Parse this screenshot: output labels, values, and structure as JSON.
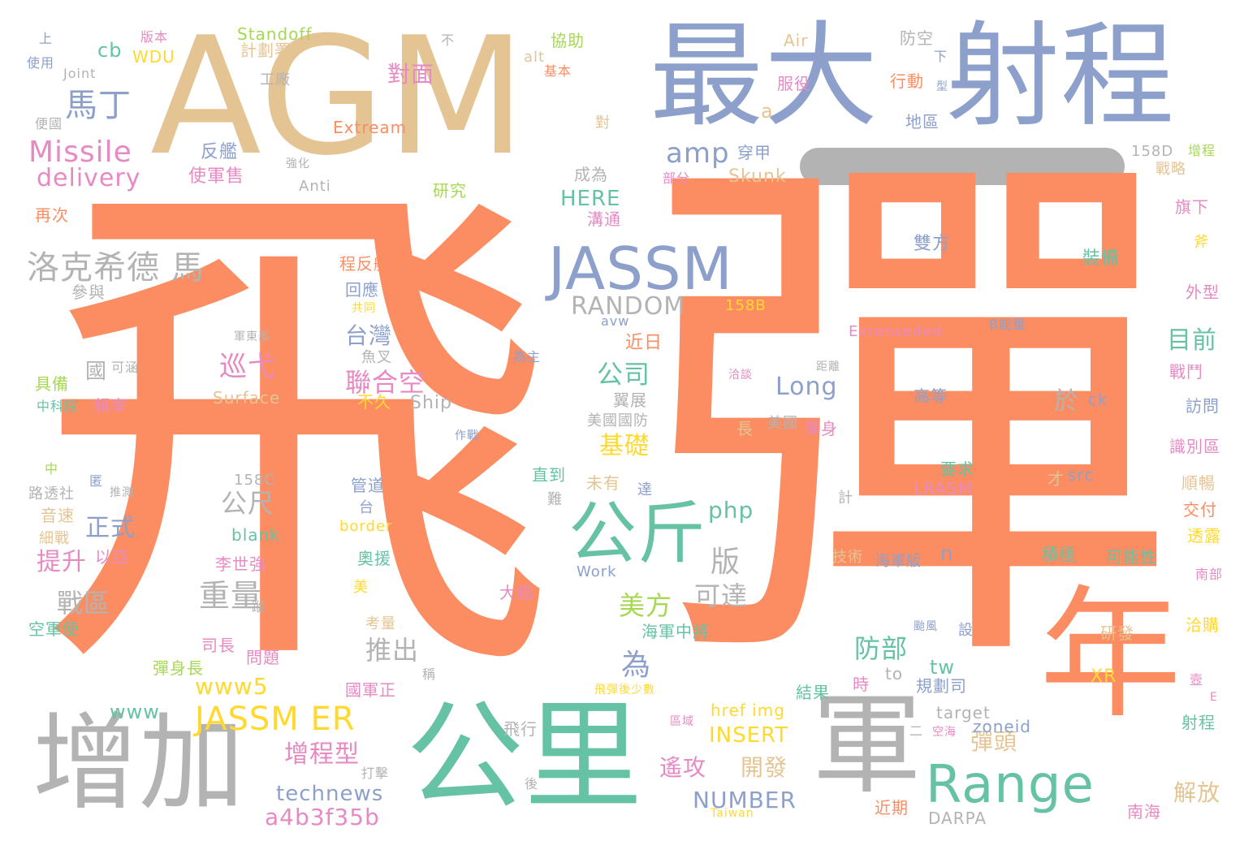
{
  "palette": {
    "orange": "#fc8d62",
    "blue": "#8da0cb",
    "green": "#66c2a5",
    "pink": "#e78ac3",
    "gray": "#b3b3b3",
    "tan": "#e5c494",
    "yellow": "#ffd92f",
    "lime": "#a6d854"
  },
  "words": [
    {
      "text": "飛",
      "color": "orange"
    },
    {
      "text": "彈",
      "color": "orange"
    },
    {
      "text": "AGM",
      "color": "tan"
    },
    {
      "text": "最大",
      "color": "blue"
    },
    {
      "text": "射程",
      "color": "blue"
    },
    {
      "text": "增加",
      "color": "gray"
    },
    {
      "text": "公里",
      "color": "green"
    },
    {
      "text": "軍",
      "color": "gray"
    },
    {
      "text": "年",
      "color": "orange"
    },
    {
      "text": "Range",
      "color": "green"
    },
    {
      "text": "JASSM",
      "color": "blue"
    },
    {
      "text": "公斤",
      "color": "green"
    },
    {
      "text": "JASSM ER",
      "color": "yellow"
    },
    {
      "text": "洛克希德 馬",
      "color": "gray"
    },
    {
      "text": "Missile",
      "color": "pink"
    },
    {
      "text": "delivery",
      "color": "pink"
    },
    {
      "text": "馬丁",
      "color": "blue"
    },
    {
      "text": "amp",
      "color": "blue"
    },
    {
      "text": "RANDOM",
      "color": "gray"
    },
    {
      "text": "重量",
      "color": "gray"
    },
    {
      "text": "版",
      "color": "gray"
    },
    {
      "text": "可達",
      "color": "gray"
    },
    {
      "text": "美方",
      "color": "lime"
    },
    {
      "text": "台灣",
      "color": "blue"
    },
    {
      "text": "聯合空",
      "color": "pink"
    },
    {
      "text": "巡弋",
      "color": "pink"
    },
    {
      "text": "公司",
      "color": "green"
    },
    {
      "text": "基礎",
      "color": "yellow"
    },
    {
      "text": "Long",
      "color": "blue"
    },
    {
      "text": "php",
      "color": "green"
    },
    {
      "text": "正式",
      "color": "blue"
    },
    {
      "text": "提升",
      "color": "pink"
    },
    {
      "text": "戰區",
      "color": "gray"
    },
    {
      "text": "公尺",
      "color": "gray"
    },
    {
      "text": "推出",
      "color": "gray"
    },
    {
      "text": "防部",
      "color": "green"
    },
    {
      "text": "為",
      "color": "blue"
    },
    {
      "text": "www5",
      "color": "yellow"
    },
    {
      "text": "www",
      "color": "green"
    },
    {
      "text": "增程型",
      "color": "pink"
    },
    {
      "text": "technews",
      "color": "blue"
    },
    {
      "text": "a4b3f35b",
      "color": "pink"
    },
    {
      "text": "INSERT",
      "color": "yellow"
    },
    {
      "text": "NUMBER",
      "color": "blue"
    },
    {
      "text": "開發",
      "color": "tan"
    },
    {
      "text": "遙攻",
      "color": "pink"
    },
    {
      "text": "彈頭",
      "color": "tan"
    },
    {
      "text": "目前",
      "color": "green"
    },
    {
      "text": "於",
      "color": "gray"
    },
    {
      "text": "HERE",
      "color": "green"
    },
    {
      "text": "對面",
      "color": "pink"
    },
    {
      "text": "cb",
      "color": "green"
    },
    {
      "text": "WDU",
      "color": "yellow"
    },
    {
      "text": "Standoff",
      "color": "lime"
    },
    {
      "text": "計劃署",
      "color": "tan"
    },
    {
      "text": "Joint",
      "color": "gray"
    },
    {
      "text": "工廠",
      "color": "gray"
    },
    {
      "text": "Extream",
      "color": "orange"
    },
    {
      "text": "反艦",
      "color": "blue"
    },
    {
      "text": "使軍售",
      "color": "pink"
    },
    {
      "text": "Anti",
      "color": "gray"
    },
    {
      "text": "強化",
      "color": "gray"
    },
    {
      "text": "研究",
      "color": "lime"
    },
    {
      "text": "成為",
      "color": "gray"
    },
    {
      "text": "穿甲",
      "color": "blue"
    },
    {
      "text": "部分",
      "color": "pink"
    },
    {
      "text": "Skunk",
      "color": "tan"
    },
    {
      "text": "溝通",
      "color": "pink"
    },
    {
      "text": "Air",
      "color": "tan"
    },
    {
      "text": "防空",
      "color": "gray"
    },
    {
      "text": "服役",
      "color": "pink"
    },
    {
      "text": "行動",
      "color": "orange"
    },
    {
      "text": "型",
      "color": "blue"
    },
    {
      "text": "下",
      "color": "blue"
    },
    {
      "text": "地區",
      "color": "blue"
    },
    {
      "text": "a",
      "color": "tan"
    },
    {
      "text": "對",
      "color": "tan"
    },
    {
      "text": "協助",
      "color": "lime"
    },
    {
      "text": "基本",
      "color": "orange"
    },
    {
      "text": "alt",
      "color": "tan"
    },
    {
      "text": "不",
      "color": "gray"
    },
    {
      "text": "上",
      "color": "blue"
    },
    {
      "text": "使用",
      "color": "blue"
    },
    {
      "text": "便國",
      "color": "gray"
    },
    {
      "text": "版本",
      "color": "pink"
    },
    {
      "text": "再次",
      "color": "orange"
    },
    {
      "text": "參與",
      "color": "gray"
    },
    {
      "text": "158D",
      "color": "gray"
    },
    {
      "text": "增程",
      "color": "lime"
    },
    {
      "text": "戰略",
      "color": "tan"
    },
    {
      "text": "旗下",
      "color": "pink"
    },
    {
      "text": "斧",
      "color": "yellow"
    },
    {
      "text": "雙方",
      "color": "blue"
    },
    {
      "text": "裝備",
      "color": "green"
    },
    {
      "text": "外型",
      "color": "pink"
    },
    {
      "text": "158B",
      "color": "yellow"
    },
    {
      "text": "Extenseded",
      "color": "pink"
    },
    {
      "text": "B能量",
      "color": "blue"
    },
    {
      "text": "程反艦",
      "color": "orange"
    },
    {
      "text": "回應",
      "color": "blue"
    },
    {
      "text": "共同",
      "color": "yellow"
    },
    {
      "text": "avw",
      "color": "blue"
    },
    {
      "text": "近日",
      "color": "orange"
    },
    {
      "text": "為主",
      "color": "blue"
    },
    {
      "text": "魚叉",
      "color": "gray"
    },
    {
      "text": "軍東部",
      "color": "gray"
    },
    {
      "text": "國",
      "color": "gray"
    },
    {
      "text": "可涵",
      "color": "gray"
    },
    {
      "text": "具備",
      "color": "lime"
    },
    {
      "text": "中科院",
      "color": "green"
    },
    {
      "text": "頻率",
      "color": "pink"
    },
    {
      "text": "Surface",
      "color": "tan"
    },
    {
      "text": "不久",
      "color": "yellow"
    },
    {
      "text": "Ship",
      "color": "gray"
    },
    {
      "text": "翼展",
      "color": "gray"
    },
    {
      "text": "美國國防",
      "color": "gray"
    },
    {
      "text": "距離",
      "color": "gray"
    },
    {
      "text": "洽談",
      "color": "pink"
    },
    {
      "text": "高等",
      "color": "blue"
    },
    {
      "text": "ck",
      "color": "blue"
    },
    {
      "text": "戰鬥",
      "color": "pink"
    },
    {
      "text": "訪問",
      "color": "blue"
    },
    {
      "text": "識別區",
      "color": "pink"
    },
    {
      "text": "作戰",
      "color": "blue"
    },
    {
      "text": "長",
      "color": "tan"
    },
    {
      "text": "美國",
      "color": "gray"
    },
    {
      "text": "彈身",
      "color": "pink"
    },
    {
      "text": "中",
      "color": "lime"
    },
    {
      "text": "匿",
      "color": "blue"
    },
    {
      "text": "推測",
      "color": "gray"
    },
    {
      "text": "158C",
      "color": "gray"
    },
    {
      "text": "路透社",
      "color": "gray"
    },
    {
      "text": "管道",
      "color": "blue"
    },
    {
      "text": "台",
      "color": "blue"
    },
    {
      "text": "直到",
      "color": "green"
    },
    {
      "text": "未有",
      "color": "tan"
    },
    {
      "text": "達",
      "color": "blue"
    },
    {
      "text": "難",
      "color": "gray"
    },
    {
      "text": "計",
      "color": "gray"
    },
    {
      "text": "要求",
      "color": "green"
    },
    {
      "text": "LRASM",
      "color": "pink"
    },
    {
      "text": "才",
      "color": "tan"
    },
    {
      "text": "src",
      "color": "blue"
    },
    {
      "text": "順暢",
      "color": "tan"
    },
    {
      "text": "交付",
      "color": "orange"
    },
    {
      "text": "透露",
      "color": "yellow"
    },
    {
      "text": "音速",
      "color": "tan"
    },
    {
      "text": "細戰",
      "color": "tan"
    },
    {
      "text": "以亞",
      "color": "pink"
    },
    {
      "text": "blank",
      "color": "green"
    },
    {
      "text": "border",
      "color": "yellow"
    },
    {
      "text": "李世強",
      "color": "pink"
    },
    {
      "text": "奧援",
      "color": "green"
    },
    {
      "text": "技術",
      "color": "tan"
    },
    {
      "text": "海軍版",
      "color": "blue"
    },
    {
      "text": "n",
      "color": "blue"
    },
    {
      "text": "積極",
      "color": "green"
    },
    {
      "text": "可能性",
      "color": "green"
    },
    {
      "text": "南部",
      "color": "pink"
    },
    {
      "text": "Work",
      "color": "blue"
    },
    {
      "text": "大幅",
      "color": "pink"
    },
    {
      "text": "美",
      "color": "yellow"
    },
    {
      "text": "空軍使",
      "color": "green"
    },
    {
      "text": "蹤",
      "color": "gray"
    },
    {
      "text": "考量",
      "color": "tan"
    },
    {
      "text": "海軍中將",
      "color": "green"
    },
    {
      "text": "颱風",
      "color": "blue"
    },
    {
      "text": "設",
      "color": "blue"
    },
    {
      "text": "研發",
      "color": "tan"
    },
    {
      "text": "洽購",
      "color": "yellow"
    },
    {
      "text": "司長",
      "color": "pink"
    },
    {
      "text": "問題",
      "color": "pink"
    },
    {
      "text": "彈身長",
      "color": "lime"
    },
    {
      "text": "稱",
      "color": "gray"
    },
    {
      "text": "國軍正",
      "color": "pink"
    },
    {
      "text": "飛彈後少數",
      "color": "yellow"
    },
    {
      "text": "結果",
      "color": "green"
    },
    {
      "text": "時",
      "color": "pink"
    },
    {
      "text": "to",
      "color": "gray"
    },
    {
      "text": "tw",
      "color": "green"
    },
    {
      "text": "XR",
      "color": "yellow"
    },
    {
      "text": "規劃司",
      "color": "blue"
    },
    {
      "text": "E",
      "color": "pink"
    },
    {
      "text": "壼",
      "color": "pink"
    },
    {
      "text": "href img",
      "color": "yellow"
    },
    {
      "text": "target",
      "color": "gray"
    },
    {
      "text": "zoneid",
      "color": "blue"
    },
    {
      "text": "射程",
      "color": "green"
    },
    {
      "text": "飛行",
      "color": "gray"
    },
    {
      "text": "區域",
      "color": "pink"
    },
    {
      "text": "二",
      "color": "gray"
    },
    {
      "text": "空海",
      "color": "pink"
    },
    {
      "text": "打擊",
      "color": "gray"
    },
    {
      "text": "後",
      "color": "gray"
    },
    {
      "text": "Taiwan",
      "color": "yellow"
    },
    {
      "text": "近期",
      "color": "orange"
    },
    {
      "text": "DARPA",
      "color": "gray"
    },
    {
      "text": "南海",
      "color": "pink"
    },
    {
      "text": "解放",
      "color": "tan"
    }
  ]
}
